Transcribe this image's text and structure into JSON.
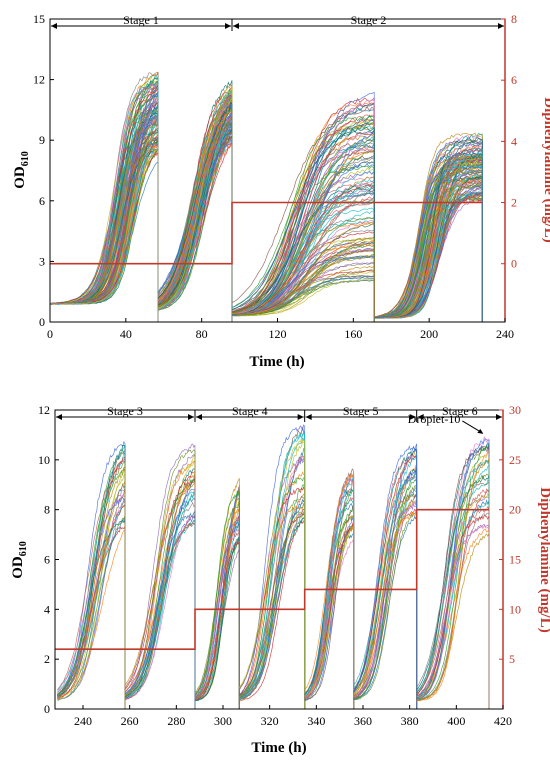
{
  "chart_data": [
    {
      "type": "line",
      "x_label": "Time (h)",
      "y_label_main": "OD",
      "y_label_sub": "610",
      "y2_label": "Diphenylamine (mg/L)",
      "xlim": [
        0,
        240
      ],
      "ylim": [
        0,
        15
      ],
      "y2lim": [
        -1.905,
        8
      ],
      "x_ticks": [
        0,
        40,
        80,
        120,
        160,
        200,
        240
      ],
      "y_ticks": [
        0,
        3,
        6,
        9,
        12,
        15
      ],
      "y2_ticks": [
        0,
        2,
        4,
        6,
        8
      ],
      "stages": [
        {
          "label": "Stage 1",
          "start": 0,
          "end": 96
        },
        {
          "label": "Stage 2",
          "start": 96,
          "end": 240
        }
      ],
      "diphenylamine_steps": [
        [
          0,
          0
        ],
        [
          96,
          0
        ],
        [
          96,
          2
        ],
        [
          228,
          2
        ]
      ],
      "growth_segments": [
        {
          "start": 0,
          "end": 57,
          "od_start": 0.9,
          "od_max_range": [
            8.5,
            12.5
          ],
          "midpoint": 39,
          "rate": 0.22,
          "n_curves": 120
        },
        {
          "start": 57,
          "end": 96,
          "od_start": 0.5,
          "od_max_range": [
            9.5,
            12.2
          ],
          "midpoint": 78,
          "rate": 0.16,
          "n_curves": 120
        },
        {
          "start": 96,
          "end": 171,
          "od_start": 0.3,
          "od_max_range": [
            2.0,
            11.5
          ],
          "midpoint": 132,
          "rate": 0.12,
          "n_curves": 120
        },
        {
          "start": 171,
          "end": 228,
          "od_start": 0.2,
          "od_max_range": [
            6.0,
            9.3
          ],
          "midpoint": 200,
          "rate": 0.25,
          "n_curves": 120
        }
      ]
    },
    {
      "type": "line",
      "x_label": "Time (h)",
      "y_label_main": "OD",
      "y_label_sub": "610",
      "y2_label": "Diphenylamine (mg/L)",
      "xlim": [
        228,
        420
      ],
      "ylim": [
        0,
        12
      ],
      "y2lim": [
        0,
        30
      ],
      "x_ticks": [
        240,
        260,
        280,
        300,
        320,
        340,
        360,
        380,
        400,
        420
      ],
      "y_ticks": [
        0,
        2,
        4,
        6,
        8,
        10,
        12
      ],
      "y2_ticks": [
        5,
        10,
        15,
        20,
        25,
        30
      ],
      "stages": [
        {
          "label": "Stage 3",
          "start": 228,
          "end": 288
        },
        {
          "label": "Stage 4",
          "start": 288,
          "end": 335
        },
        {
          "label": "Stage 5",
          "start": 335,
          "end": 383
        },
        {
          "label": "Stage 6",
          "start": 383,
          "end": 420
        }
      ],
      "diphenylamine_steps": [
        [
          228,
          6
        ],
        [
          288,
          6
        ],
        [
          288,
          10
        ],
        [
          335,
          10
        ],
        [
          335,
          12
        ],
        [
          383,
          12
        ],
        [
          383,
          20
        ],
        [
          414,
          20
        ]
      ],
      "growth_segments": [
        {
          "start": 229,
          "end": 258,
          "od_start": 0.3,
          "od_max_range": [
            7.5,
            11.2
          ],
          "midpoint": 245,
          "rate": 0.25,
          "n_curves": 30
        },
        {
          "start": 258,
          "end": 288,
          "od_start": 0.3,
          "od_max_range": [
            7.5,
            10.8
          ],
          "midpoint": 273,
          "rate": 0.25,
          "n_curves": 30
        },
        {
          "start": 288,
          "end": 307,
          "od_start": 0.3,
          "od_max_range": [
            6.8,
            9.9
          ],
          "midpoint": 299,
          "rate": 0.38,
          "n_curves": 30
        },
        {
          "start": 307,
          "end": 335,
          "od_start": 0.3,
          "od_max_range": [
            7.8,
            11.4
          ],
          "midpoint": 321,
          "rate": 0.28,
          "n_curves": 30
        },
        {
          "start": 335,
          "end": 356,
          "od_start": 0.3,
          "od_max_range": [
            7.0,
            9.8
          ],
          "midpoint": 346,
          "rate": 0.36,
          "n_curves": 30
        },
        {
          "start": 356,
          "end": 383,
          "od_start": 0.3,
          "od_max_range": [
            7.8,
            10.8
          ],
          "midpoint": 369,
          "rate": 0.28,
          "n_curves": 30
        },
        {
          "start": 383,
          "end": 414,
          "od_start": 0.3,
          "od_max_range": [
            6.8,
            11.0
          ],
          "midpoint": 398,
          "rate": 0.28,
          "n_curves": 30
        }
      ],
      "annotation": {
        "text": "Droplet-10",
        "x": 412,
        "y": 11.0
      }
    }
  ]
}
